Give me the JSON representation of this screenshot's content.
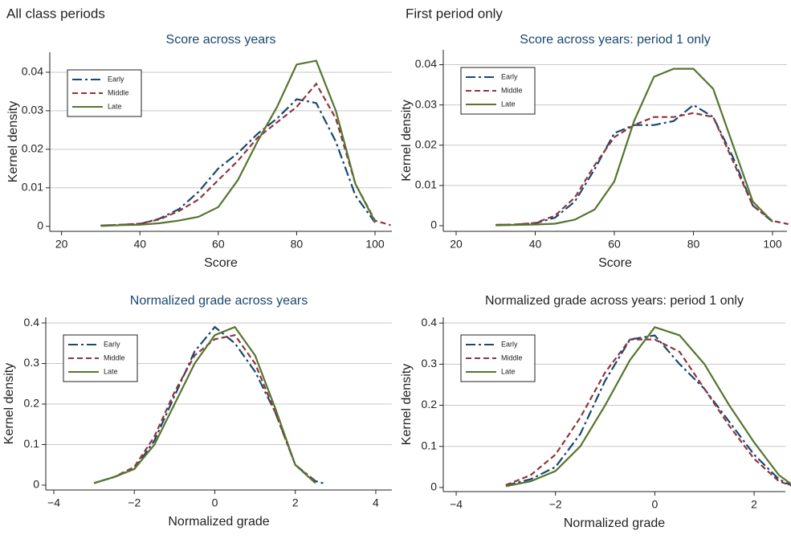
{
  "column_titles": [
    "All class periods",
    "First period only"
  ],
  "chart_data": [
    {
      "type": "line",
      "title": "Score across years",
      "title_color": "#1a476f",
      "x_label": "Score",
      "y_label": "Kernel density",
      "x": [
        30,
        35,
        40,
        45,
        50,
        55,
        60,
        65,
        70,
        75,
        80,
        85,
        90,
        95,
        100,
        104
      ],
      "series": [
        {
          "name": "Early",
          "color": "#1a476f",
          "dash": "dashdot",
          "values": [
            0.0002,
            0.0004,
            0.0006,
            0.002,
            0.0045,
            0.009,
            0.015,
            0.019,
            0.024,
            0.028,
            0.033,
            0.032,
            0.022,
            0.008,
            0.001,
            null
          ]
        },
        {
          "name": "Middle",
          "color": "#90353b",
          "dash": "dash",
          "values": [
            0.0002,
            0.0004,
            0.0007,
            0.0018,
            0.004,
            0.007,
            0.012,
            0.017,
            0.023,
            0.027,
            0.031,
            0.037,
            0.028,
            0.011,
            0.0015,
            0.0003
          ]
        },
        {
          "name": "Late",
          "color": "#55752f",
          "dash": "solid",
          "values": [
            0.0001,
            0.0003,
            0.0004,
            0.0008,
            0.0015,
            0.0025,
            0.005,
            0.012,
            0.022,
            0.031,
            0.042,
            0.043,
            0.03,
            0.011,
            0.0012,
            null
          ]
        }
      ],
      "xlim": [
        17,
        104.3
      ],
      "xticks": [
        20,
        40,
        60,
        80,
        100
      ],
      "ylim": [
        -0.0013,
        0.0452
      ],
      "yticks": [
        0,
        0.01,
        0.02,
        0.03,
        0.04
      ],
      "grid": true,
      "legend": "upper left"
    },
    {
      "type": "line",
      "title": "Score across years: period 1 only",
      "title_color": "#1a476f",
      "x_label": "Score",
      "y_label": "Kernel density",
      "x": [
        30,
        35,
        40,
        45,
        50,
        55,
        60,
        65,
        70,
        75,
        80,
        85,
        90,
        95,
        100,
        104
      ],
      "series": [
        {
          "name": "Early",
          "color": "#1a476f",
          "dash": "dashdot",
          "values": [
            0.0002,
            0.0003,
            0.0006,
            0.002,
            0.006,
            0.014,
            0.023,
            0.025,
            0.025,
            0.026,
            0.03,
            0.027,
            0.017,
            0.005,
            0.001,
            null
          ]
        },
        {
          "name": "Middle",
          "color": "#90353b",
          "dash": "dash",
          "values": [
            0.0002,
            0.0003,
            0.0007,
            0.0025,
            0.007,
            0.015,
            0.022,
            0.025,
            0.027,
            0.027,
            0.028,
            0.027,
            0.016,
            0.005,
            0.0012,
            0.0004
          ]
        },
        {
          "name": "Late",
          "color": "#55752f",
          "dash": "solid",
          "values": [
            0.0001,
            0.0002,
            0.0003,
            0.0005,
            0.0015,
            0.004,
            0.011,
            0.026,
            0.037,
            0.039,
            0.039,
            0.034,
            0.02,
            0.006,
            0.001,
            null
          ]
        }
      ],
      "xlim": [
        16.75,
        103.65
      ],
      "xticks": [
        20,
        40,
        60,
        80,
        100
      ],
      "ylim": [
        -0.0014,
        0.0437
      ],
      "yticks": [
        0,
        0.01,
        0.02,
        0.03,
        0.04
      ],
      "grid": true,
      "legend": "upper left"
    },
    {
      "type": "line",
      "title": "Normalized grade across years",
      "title_color": "#1a476f",
      "x_label": "Normalized grade",
      "y_label": "Kernel density",
      "x": [
        -3,
        -2.5,
        -2,
        -1.5,
        -1,
        -0.5,
        0,
        0.5,
        1,
        1.5,
        2,
        2.5,
        2.75
      ],
      "series": [
        {
          "name": "Early",
          "color": "#1a476f",
          "dash": "dashdot",
          "values": [
            0.005,
            0.02,
            0.04,
            0.11,
            0.22,
            0.33,
            0.39,
            0.35,
            0.28,
            0.18,
            0.05,
            0.01,
            0.003
          ]
        },
        {
          "name": "Middle",
          "color": "#90353b",
          "dash": "dash",
          "values": [
            0.005,
            0.02,
            0.045,
            0.12,
            0.23,
            0.32,
            0.36,
            0.37,
            0.3,
            0.18,
            0.05,
            0.008,
            null
          ]
        },
        {
          "name": "Late",
          "color": "#55752f",
          "dash": "solid",
          "values": [
            0.005,
            0.02,
            0.04,
            0.1,
            0.2,
            0.3,
            0.37,
            0.39,
            0.32,
            0.19,
            0.05,
            0.005,
            null
          ]
        }
      ],
      "xlim": [
        -4.2,
        4.4
      ],
      "xticks": [
        {
          "value": -4,
          "label": "−4"
        },
        {
          "value": -2,
          "label": "−2"
        },
        0,
        2,
        4
      ],
      "ylim": [
        -0.012,
        0.414
      ],
      "yticks": [
        0,
        0.1,
        0.2,
        0.3,
        0.4
      ],
      "grid": true,
      "legend": "upper left"
    },
    {
      "type": "line",
      "title": "Normalized grade across years: period 1 only",
      "title_color": "#222222",
      "x_label": "Normalized grade",
      "y_label": "Kernel density",
      "x": [
        -3,
        -2.5,
        -2,
        -1.5,
        -1,
        -0.5,
        0,
        0.5,
        1,
        1.5,
        2,
        2.5,
        2.75
      ],
      "series": [
        {
          "name": "Early",
          "color": "#1a476f",
          "dash": "dashdot",
          "values": [
            0.005,
            0.02,
            0.05,
            0.13,
            0.26,
            0.36,
            0.37,
            0.3,
            0.24,
            0.16,
            0.08,
            0.02,
            0.005
          ]
        },
        {
          "name": "Middle",
          "color": "#90353b",
          "dash": "dash",
          "values": [
            0.006,
            0.03,
            0.08,
            0.17,
            0.28,
            0.36,
            0.36,
            0.33,
            0.24,
            0.15,
            0.07,
            0.015,
            0.005
          ]
        },
        {
          "name": "Late",
          "color": "#55752f",
          "dash": "solid",
          "values": [
            0.003,
            0.015,
            0.04,
            0.1,
            0.2,
            0.31,
            0.39,
            0.37,
            0.3,
            0.2,
            0.11,
            0.03,
            0.008
          ]
        }
      ],
      "xlim": [
        -4.26,
        2.63
      ],
      "xticks": [
        {
          "value": -4,
          "label": "−4"
        },
        {
          "value": -2,
          "label": "−2"
        },
        0,
        2
      ],
      "ylim": [
        -0.01,
        0.414
      ],
      "yticks": [
        0,
        0.1,
        0.2,
        0.3,
        0.4
      ],
      "grid": true,
      "legend": "upper left"
    }
  ]
}
